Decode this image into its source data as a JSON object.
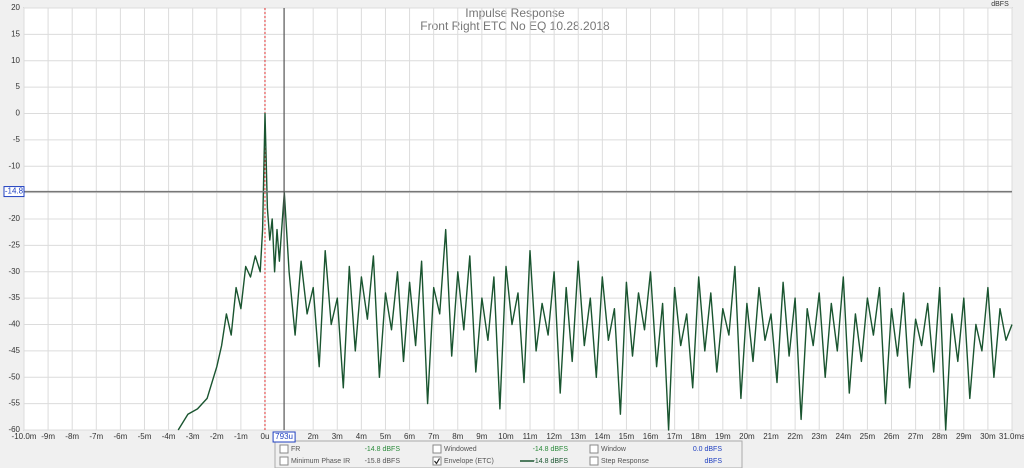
{
  "chart_data": {
    "type": "line",
    "title": "Impulse Response",
    "subtitle": "Front Right ETC No EQ 10.28.2018",
    "y_unit": "dBFS",
    "x": [
      -3.6,
      -3.2,
      -2.8,
      -2.4,
      -2.0,
      -1.8,
      -1.6,
      -1.4,
      -1.2,
      -1.0,
      -0.8,
      -0.6,
      -0.4,
      -0.2,
      -0.1,
      0,
      0.1,
      0.2,
      0.3,
      0.4,
      0.5,
      0.6,
      0.8,
      1.0,
      1.25,
      1.5,
      1.75,
      2.0,
      2.25,
      2.5,
      2.75,
      3.0,
      3.25,
      3.5,
      3.75,
      4.0,
      4.25,
      4.5,
      4.75,
      5.0,
      5.25,
      5.5,
      5.75,
      6.0,
      6.25,
      6.5,
      6.75,
      7.0,
      7.25,
      7.5,
      7.75,
      8.0,
      8.25,
      8.5,
      8.75,
      9.0,
      9.25,
      9.5,
      9.75,
      10.0,
      10.25,
      10.5,
      10.75,
      11.0,
      11.25,
      11.5,
      11.75,
      12.0,
      12.25,
      12.5,
      12.75,
      13.0,
      13.25,
      13.5,
      13.75,
      14.0,
      14.25,
      14.5,
      14.75,
      15.0,
      15.25,
      15.5,
      15.75,
      16.0,
      16.25,
      16.5,
      16.75,
      17.0,
      17.25,
      17.5,
      17.75,
      18.0,
      18.25,
      18.5,
      18.75,
      19.0,
      19.25,
      19.5,
      19.75,
      20.0,
      20.25,
      20.5,
      20.75,
      21.0,
      21.25,
      21.5,
      21.75,
      22.0,
      22.25,
      22.5,
      22.75,
      23.0,
      23.25,
      23.5,
      23.75,
      24.0,
      24.25,
      24.5,
      24.75,
      25.0,
      25.25,
      25.5,
      25.75,
      26.0,
      26.25,
      26.5,
      26.75,
      27.0,
      27.25,
      27.5,
      27.75,
      28.0,
      28.25,
      28.5,
      28.75,
      29.0,
      29.25,
      29.5,
      29.75,
      30.0,
      30.25,
      30.5,
      30.75,
      31.0
    ],
    "series": [
      {
        "color": "#1a5530",
        "values": [
          -60,
          -57,
          -56,
          -54,
          -48,
          -44,
          -38,
          -42,
          -33,
          -37,
          -29,
          -31,
          -27,
          -30,
          -22,
          0,
          -18,
          -24,
          -20,
          -30,
          -22,
          -28,
          -15,
          -30,
          -42,
          -28,
          -38,
          -33,
          -48,
          -26,
          -40,
          -35,
          -52,
          -29,
          -45,
          -31,
          -39,
          -27,
          -50,
          -34,
          -41,
          -30,
          -47,
          -32,
          -44,
          -28,
          -55,
          -33,
          -38,
          -22,
          -46,
          -30,
          -41,
          -27,
          -49,
          -35,
          -43,
          -31,
          -56,
          -29,
          -40,
          -34,
          -51,
          -26,
          -45,
          -36,
          -42,
          -30,
          -53,
          -33,
          -47,
          -28,
          -44,
          -35,
          -50,
          -31,
          -43,
          -37,
          -57,
          -32,
          -46,
          -34,
          -41,
          -30,
          -48,
          -36,
          -60,
          -33,
          -44,
          -38,
          -52,
          -31,
          -45,
          -34,
          -49,
          -37,
          -42,
          -29,
          -54,
          -36,
          -47,
          -33,
          -43,
          -38,
          -51,
          -32,
          -46,
          -35,
          -58,
          -37,
          -44,
          -34,
          -50,
          -36,
          -45,
          -31,
          -53,
          -38,
          -47,
          -35,
          -42,
          -33,
          -55,
          -37,
          -46,
          -34,
          -52,
          -39,
          -44,
          -36,
          -49,
          -33,
          -60,
          -38,
          -47,
          -35,
          -54,
          -40,
          -45,
          -33,
          -50,
          -37,
          -43,
          -40
        ]
      }
    ],
    "xlim": [
      -10,
      31
    ],
    "ylim": [
      -60,
      20
    ],
    "xticks": [
      {
        "value": -10,
        "label": "-10.0m"
      },
      {
        "value": -9,
        "label": "-9m"
      },
      {
        "value": -8,
        "label": "-8m"
      },
      {
        "value": -7,
        "label": "-7m"
      },
      {
        "value": -6,
        "label": "-6m"
      },
      {
        "value": -5,
        "label": "-5m"
      },
      {
        "value": -4,
        "label": "-4m"
      },
      {
        "value": -3,
        "label": "-3m"
      },
      {
        "value": -2,
        "label": "-2m"
      },
      {
        "value": -1,
        "label": "-1m"
      },
      {
        "value": 0,
        "label": "0u"
      },
      {
        "value": 2,
        "label": "2m"
      },
      {
        "value": 3,
        "label": "3m"
      },
      {
        "value": 4,
        "label": "4m"
      },
      {
        "value": 5,
        "label": "5m"
      },
      {
        "value": 6,
        "label": "6m"
      },
      {
        "value": 7,
        "label": "7m"
      },
      {
        "value": 8,
        "label": "8m"
      },
      {
        "value": 9,
        "label": "9m"
      },
      {
        "value": 10,
        "label": "10m"
      },
      {
        "value": 11,
        "label": "11m"
      },
      {
        "value": 12,
        "label": "12m"
      },
      {
        "value": 13,
        "label": "13m"
      },
      {
        "value": 14,
        "label": "14m"
      },
      {
        "value": 15,
        "label": "15m"
      },
      {
        "value": 16,
        "label": "16m"
      },
      {
        "value": 17,
        "label": "17m"
      },
      {
        "value": 18,
        "label": "18m"
      },
      {
        "value": 19,
        "label": "19m"
      },
      {
        "value": 20,
        "label": "20m"
      },
      {
        "value": 21,
        "label": "21m"
      },
      {
        "value": 22,
        "label": "22m"
      },
      {
        "value": 23,
        "label": "23m"
      },
      {
        "value": 24,
        "label": "24m"
      },
      {
        "value": 25,
        "label": "25m"
      },
      {
        "value": 26,
        "label": "26m"
      },
      {
        "value": 27,
        "label": "27m"
      },
      {
        "value": 28,
        "label": "28m"
      },
      {
        "value": 29,
        "label": "29m"
      },
      {
        "value": 30,
        "label": "30m"
      },
      {
        "value": 31,
        "label": "31.0ms"
      }
    ],
    "yticks": [
      20,
      15,
      10,
      5,
      0,
      -5,
      -10,
      -15,
      -20,
      -25,
      -30,
      -35,
      -40,
      -45,
      -50,
      -55,
      -60
    ],
    "grid": true,
    "cursor_x": {
      "value": 0.793,
      "label": "793u"
    },
    "cursor_y": -14.8,
    "marker_x": 0
  },
  "readouts": [
    {
      "label": "FR",
      "value": "-14.8 dBFS",
      "color": "#2a8a3a",
      "checked": false
    },
    {
      "label": "Windowed",
      "value": "-14.8 dBFS",
      "color": "#2a8a3a",
      "checked": false
    },
    {
      "label": "Window",
      "value": "0.0 dBFS",
      "color": "#2040c0",
      "checked": false
    },
    {
      "label": "Minimum Phase IR",
      "value": "-15.8 dBFS",
      "color": "#555555",
      "checked": false
    },
    {
      "label": "Envelope (ETC)",
      "value": "-14.8 dBFS",
      "color": "#1a5530",
      "checked": true,
      "swatch": true
    },
    {
      "label": "Step Response",
      "value": "dBFS",
      "color": "#2040c0",
      "checked": false
    }
  ]
}
